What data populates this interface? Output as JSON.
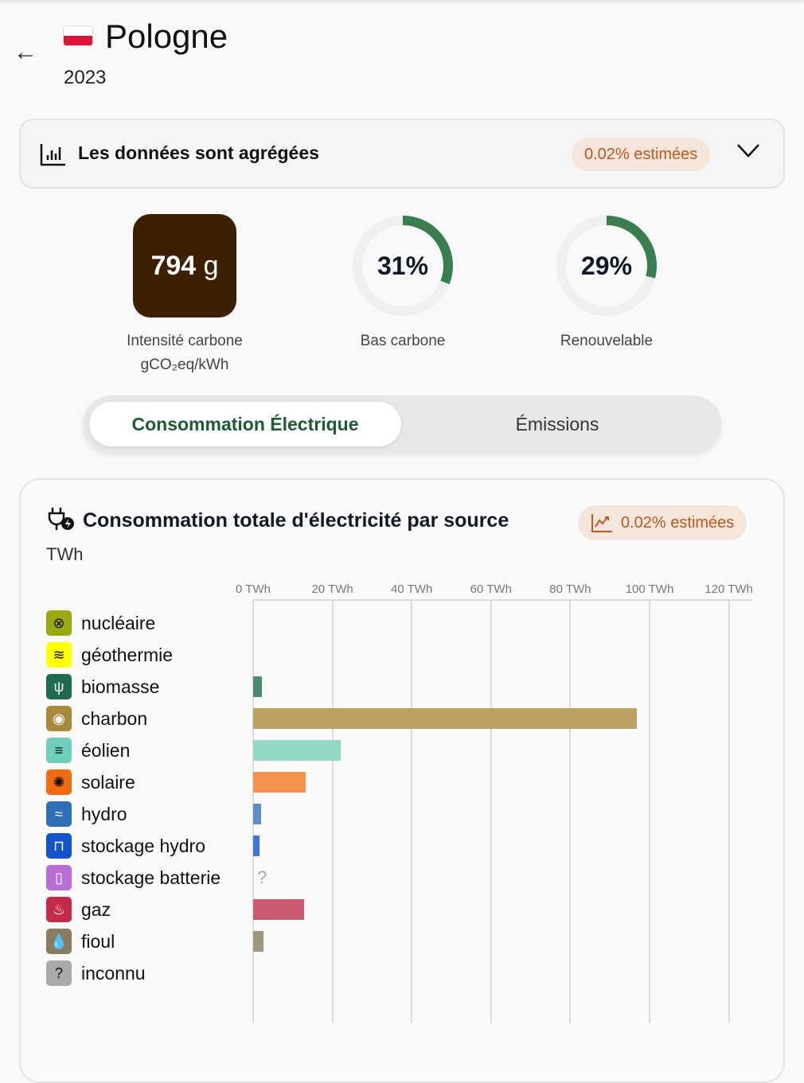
{
  "header": {
    "title": "Pologne",
    "year": "2023",
    "back_icon": "arrow-left-icon",
    "flag_colors": [
      "#ffffff",
      "#dc143c"
    ]
  },
  "aggregation": {
    "text": "Les données sont agrégées",
    "estimated": "0.02% estimées",
    "icon": "bar-chart-icon"
  },
  "metrics": {
    "carbon_intensity": {
      "value": "794",
      "unit": "g",
      "label": "Intensité carbone",
      "unit_label": "gCO₂eq/kWh",
      "color": "#3d1f02"
    },
    "low_carbon": {
      "value": "31%",
      "label": "Bas carbone",
      "fraction": 0.31
    },
    "renewable": {
      "value": "29%",
      "label": "Renouvelable",
      "fraction": 0.29
    }
  },
  "tabs": [
    {
      "label": "Consommation Électrique",
      "active": true
    },
    {
      "label": "Émissions",
      "active": false
    }
  ],
  "card": {
    "title": "Consommation totale d'électricité par source",
    "unit": "TWh",
    "estimated": "0.02% estimées"
  },
  "chart_data": {
    "type": "bar",
    "orientation": "horizontal",
    "xlabel": "TWh",
    "xlim": [
      0,
      125
    ],
    "ticks": [
      "0 TWh",
      "20 TWh",
      "40 TWh",
      "60 TWh",
      "80 TWh",
      "100 TWh",
      "120 TWh"
    ],
    "tick_values": [
      0,
      20,
      40,
      60,
      80,
      100,
      120
    ],
    "categories": [
      "nucléaire",
      "géothermie",
      "biomasse",
      "charbon",
      "éolien",
      "solaire",
      "hydro",
      "stockage hydro",
      "stockage batterie",
      "gaz",
      "fioul",
      "inconnu"
    ],
    "values": [
      0,
      0,
      2.2,
      96.8,
      22.1,
      13.3,
      2.0,
      1.6,
      null,
      12.9,
      2.6,
      0
    ],
    "unknown_marker": "?",
    "colors": [
      "#9ba80e",
      "#ffff00",
      "#1f6b4f",
      "#a8893a",
      "#6dcfb9",
      "#f26b0f",
      "#2f6fb5",
      "#1453c9",
      "#b86ed6",
      "#c62a4a",
      "#8a7d5f",
      "#aaaaaa"
    ],
    "bar_colors": [
      "#9ba80e",
      "#ffff00",
      "#4c8a72",
      "#bca161",
      "#91d8c7",
      "#f4914a",
      "#5a8dc9",
      "#3f73de",
      "#b86ed6",
      "#cc5a70",
      "#a09680",
      "#aaaaaa"
    ],
    "icons": [
      "atom-icon",
      "heat-waves-icon",
      "sprout-icon",
      "coal-icon",
      "wind-icon",
      "sun-gear-icon",
      "waves-icon",
      "pumped-storage-icon",
      "battery-icon",
      "flame-icon",
      "oil-drop-icon",
      "question-icon"
    ],
    "icon_glyphs": [
      "⊗",
      "≋",
      "ψ",
      "◉",
      "≡",
      "✺",
      "≈",
      "⊓",
      "▯",
      "♨",
      "💧",
      "?"
    ]
  }
}
